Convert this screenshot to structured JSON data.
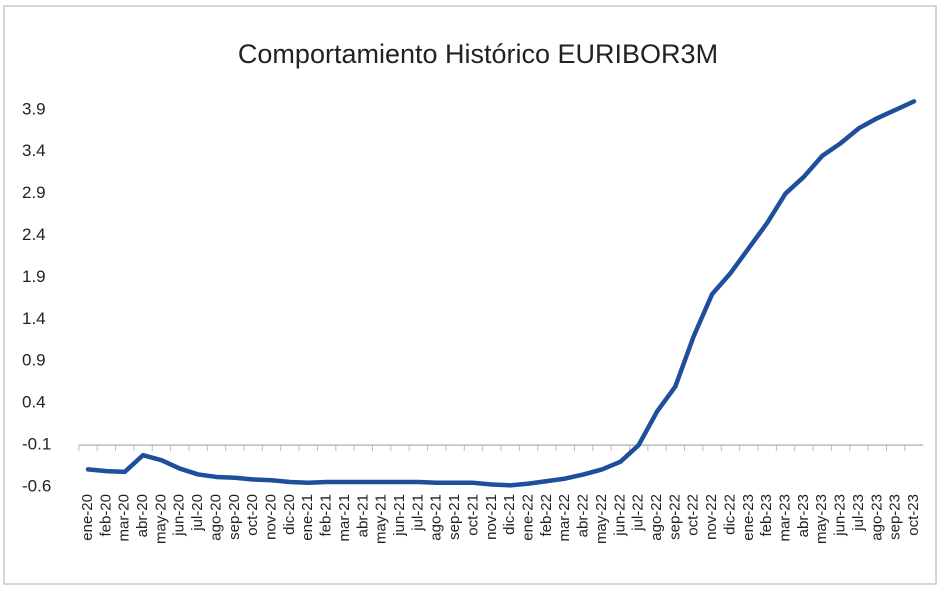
{
  "chart_data": {
    "type": "line",
    "title": "Comportamiento Histórico EURIBOR3M",
    "categories": [
      "ene-20",
      "feb-20",
      "mar-20",
      "abr-20",
      "may-20",
      "jun-20",
      "jul-20",
      "ago-20",
      "sep-20",
      "oct-20",
      "nov-20",
      "dic-20",
      "ene-21",
      "feb-21",
      "mar-21",
      "abr-21",
      "may-21",
      "jun-21",
      "jul-21",
      "ago-21",
      "sep-21",
      "oct-21",
      "nov-21",
      "dic-21",
      "ene-22",
      "feb-22",
      "mar-22",
      "abr-22",
      "may-22",
      "jun-22",
      "jul-22",
      "ago-22",
      "sep-22",
      "oct-22",
      "nov-22",
      "dic-22",
      "ene-23",
      "feb-23",
      "mar-23",
      "abr-23",
      "may-23",
      "jun-23",
      "jul-23",
      "ago-23",
      "sep-23",
      "oct-23"
    ],
    "series": [
      {
        "name": "EURIBOR3M",
        "color": "#1f4e9c",
        "values": [
          -0.39,
          -0.41,
          -0.42,
          -0.22,
          -0.28,
          -0.38,
          -0.45,
          -0.48,
          -0.49,
          -0.51,
          -0.52,
          -0.54,
          -0.55,
          -0.54,
          -0.54,
          -0.54,
          -0.54,
          -0.54,
          -0.54,
          -0.55,
          -0.55,
          -0.55,
          -0.57,
          -0.58,
          -0.56,
          -0.53,
          -0.5,
          -0.45,
          -0.39,
          -0.3,
          -0.1,
          0.3,
          0.6,
          1.2,
          1.7,
          1.95,
          2.25,
          2.55,
          2.9,
          3.1,
          3.35,
          3.5,
          3.68,
          3.8,
          3.9,
          4.0
        ]
      }
    ],
    "ylim": [
      -0.6,
      4.1
    ],
    "yticks": [
      -0.6,
      -0.1,
      0.4,
      0.9,
      1.4,
      1.9,
      2.4,
      2.9,
      3.4,
      3.9
    ],
    "x_axis_crosses": -0.1,
    "grid": false
  }
}
